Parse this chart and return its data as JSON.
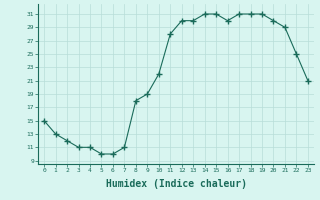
{
  "x": [
    0,
    1,
    2,
    3,
    4,
    5,
    6,
    7,
    8,
    9,
    10,
    11,
    12,
    13,
    14,
    15,
    16,
    17,
    18,
    19,
    20,
    21,
    22,
    23
  ],
  "y": [
    15,
    13,
    12,
    11,
    11,
    10,
    10,
    11,
    18,
    19,
    22,
    28,
    30,
    30,
    31,
    31,
    30,
    31,
    31,
    31,
    30,
    29,
    25,
    21
  ],
  "line_color": "#1a6b5a",
  "marker": "+",
  "marker_size": 4,
  "bg_color": "#d8f5f0",
  "grid_color": "#b8ddd8",
  "xlabel": "Humidex (Indice chaleur)",
  "xlabel_fontsize": 7,
  "ytick_values": [
    9,
    11,
    13,
    15,
    17,
    19,
    21,
    23,
    25,
    27,
    29,
    31
  ],
  "xtick_values": [
    0,
    1,
    2,
    3,
    4,
    5,
    6,
    7,
    8,
    9,
    10,
    11,
    12,
    13,
    14,
    15,
    16,
    17,
    18,
    19,
    20,
    21,
    22,
    23
  ],
  "ylim": [
    8.5,
    32.5
  ],
  "xlim": [
    -0.5,
    23.5
  ]
}
